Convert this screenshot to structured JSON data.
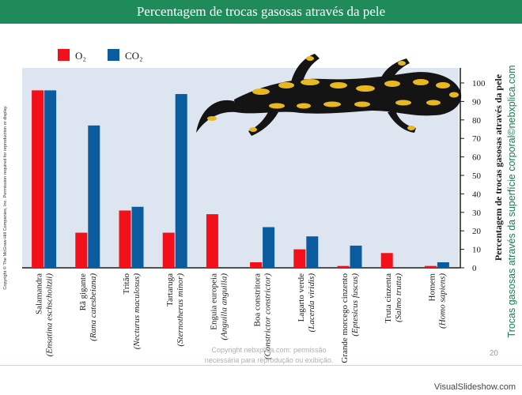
{
  "header": {
    "title": "Percentagem de trocas gasosas através da pele"
  },
  "side_copyright": "Copyright © The McGraw-Hill Companies, Inc. Permission required for reproduction or display.",
  "right_caption": "Trocas gasosas através da superfície corporal©nebxplica.com",
  "watermark": {
    "line1": "Copyright nebxplica.com: permissão",
    "line2": "necessária para reprodução ou exibição."
  },
  "page_number": "20",
  "site_mark": "VisualSlideshow.com",
  "colors": {
    "o2": "#f2111a",
    "co2": "#0a5c9e",
    "plot_bg": "#dde6f0",
    "banner": "#1f8a5a",
    "salamander_body": "#141414",
    "salamander_spots": "#e8b820"
  },
  "icons": {
    "illustration": "fire-salamander-illustration"
  },
  "chart_data": {
    "type": "bar",
    "ylabel": "Percentagem de trocas gasosas através da pele",
    "ylim": [
      0,
      100
    ],
    "yticks": [
      0,
      10,
      20,
      30,
      40,
      50,
      60,
      70,
      80,
      90,
      100
    ],
    "grid": false,
    "legend_position": "top-left",
    "categories": [
      {
        "common": "Salamandra",
        "scientific": "(Ensatina eschscholtzii)"
      },
      {
        "common": "Rã gigante",
        "scientific": "(Rana catesbeiana)"
      },
      {
        "common": "Tritão",
        "scientific": "(Necturus maculosus)"
      },
      {
        "common": "Tartaruga",
        "scientific": "(Sternotherus minor)"
      },
      {
        "common": "Enguia europeia",
        "scientific": "(Anguilla anguilla)"
      },
      {
        "common": "Boa constritora",
        "scientific": "(Constrictor constrictor)"
      },
      {
        "common": "Lagarto verde",
        "scientific": "(Lacerda viridis)"
      },
      {
        "common": "Grande morcego cinzento",
        "scientific": "(Eptesicus fuscus)"
      },
      {
        "common": "Truta cinzenta",
        "scientific": "(Salmo trutta)"
      },
      {
        "common": "Homem",
        "scientific": "(Homo sapiens)"
      }
    ],
    "series": [
      {
        "name": "O₂",
        "color": "#f2111a",
        "values": [
          96,
          19,
          31,
          19,
          29,
          3,
          10,
          1,
          8,
          1
        ]
      },
      {
        "name": "CO₂",
        "color": "#0a5c9e",
        "values": [
          96,
          77,
          33,
          94,
          null,
          22,
          17,
          12,
          null,
          3
        ]
      }
    ]
  }
}
